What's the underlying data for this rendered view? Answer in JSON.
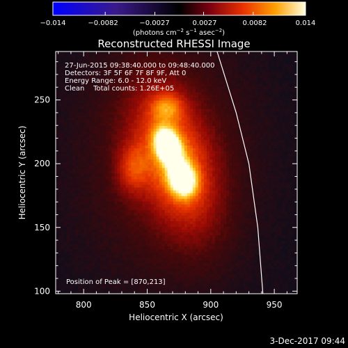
{
  "chart_data": {
    "type": "heatmap",
    "title": "Reconstructed RHESSI Image",
    "xlabel": "Heliocentric X (arcsec)",
    "ylabel": "Heliocentric Y (arcsec)",
    "xlim": [
      778,
      968
    ],
    "ylim": [
      98,
      288
    ],
    "x_ticks": [
      "800",
      "850",
      "900",
      "950"
    ],
    "x_tick_values": [
      800,
      850,
      900,
      950
    ],
    "y_ticks": [
      "100",
      "150",
      "200",
      "250"
    ],
    "y_tick_values": [
      100,
      150,
      200,
      250
    ],
    "colorbar": {
      "tick_labels": [
        "−0.014",
        "−0.0082",
        "−0.0027",
        "0.0027",
        "0.0082",
        "0.014"
      ],
      "tick_values": [
        -0.014,
        -0.0082,
        -0.0027,
        0.0027,
        0.0082,
        0.014
      ],
      "range": [
        -0.014,
        0.014
      ],
      "units_prefix": "(photons cm",
      "units_exp1": "−2",
      "units_mid": " s",
      "units_exp2": "−1",
      "units_mid2": " asec",
      "units_exp3": "−2",
      "units_suffix": ")"
    },
    "sources": [
      {
        "x": 866,
        "y": 214,
        "sx": 6,
        "sy": 9,
        "amp": 1.0,
        "rot": -20
      },
      {
        "x": 878,
        "y": 188,
        "sx": 7,
        "sy": 9,
        "amp": 0.78,
        "rot": -15
      },
      {
        "x": 872,
        "y": 202,
        "sx": 20,
        "sy": 40,
        "amp": 0.55,
        "rot": -18
      },
      {
        "x": 866,
        "y": 245,
        "sx": 9,
        "sy": 8,
        "amp": 0.32,
        "rot": 0
      },
      {
        "x": 838,
        "y": 196,
        "sx": 9,
        "sy": 14,
        "amp": 0.3,
        "rot": 0
      },
      {
        "x": 865,
        "y": 205,
        "sx": 48,
        "sy": 70,
        "amp": 0.22,
        "rot": 0
      }
    ],
    "limb": [
      [
        905,
        288
      ],
      [
        920,
        240
      ],
      [
        930,
        200
      ],
      [
        937,
        150
      ],
      [
        941,
        98
      ]
    ],
    "annotations": {
      "line1": "27-Jun-2015 09:38:40.000 to 09:48:40.000",
      "line2": "Detectors: 3F 5F 6F 7F 8F 9F, Att 0",
      "line3": "Energy Range: 6.0 - 12.0 keV",
      "line4": "Clean    Total counts: 1.26E+05",
      "peak": "Position of Peak = [870,213]"
    },
    "footer_date": "3-Dec-2017 09:44"
  }
}
